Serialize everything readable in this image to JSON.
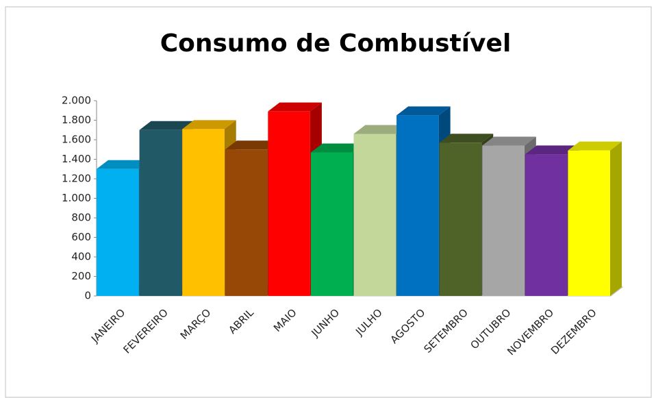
{
  "chart_data": {
    "type": "bar3d",
    "title": "Consumo de Combustível",
    "categories": [
      "JANEIRO",
      "FEVEREIRO",
      "MARÇO",
      "ABRIL",
      "MAIO",
      "JUNHO",
      "JULHO",
      "AGOSTO",
      "SETEMBRO",
      "OUTUBRO",
      "NOVEMBRO",
      "DEZEMBRO"
    ],
    "values": [
      1300,
      1700,
      1710,
      1500,
      1890,
      1470,
      1660,
      1850,
      1570,
      1540,
      1450,
      1490
    ],
    "colors": [
      "#00b0f0",
      "#215967",
      "#ffc000",
      "#974706",
      "#ff0000",
      "#00b050",
      "#c4d79b",
      "#0070c0",
      "#4f6228",
      "#a6a6a6",
      "#7030a0",
      "#ffff00"
    ],
    "ylim": [
      0,
      2000
    ],
    "yticks": [
      0,
      200,
      400,
      600,
      800,
      {
        "value": 1000,
        "label": "1.000"
      },
      {
        "value": 1200,
        "label": "1.200"
      },
      {
        "value": 1400,
        "label": "1.400"
      },
      {
        "value": 1600,
        "label": "1.600"
      },
      {
        "value": 1800,
        "label": "1.800"
      },
      {
        "value": 2000,
        "label": "2.000"
      }
    ]
  }
}
